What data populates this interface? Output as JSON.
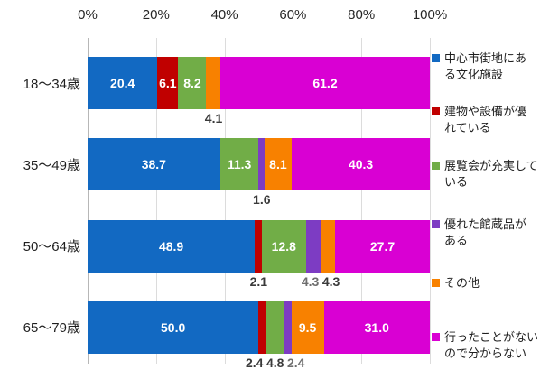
{
  "chart_data": {
    "type": "bar",
    "orientation": "horizontal",
    "stacked": true,
    "title": "",
    "xlabel": "",
    "ylabel": "",
    "xlim": [
      0,
      100
    ],
    "x_ticks": [
      "0%",
      "20%",
      "40%",
      "60%",
      "80%",
      "100%"
    ],
    "grid": true,
    "legend_position": "right",
    "categories": [
      "18〜34歳",
      "35〜49歳",
      "50〜64歳",
      "65〜79歳"
    ],
    "series": [
      {
        "name": "中心市街地にある文化施設",
        "color": "#1269c2",
        "values": [
          20.4,
          38.7,
          48.9,
          50.0
        ]
      },
      {
        "name": "建物や設備が優れている",
        "color": "#c00000",
        "values": [
          6.1,
          0,
          2.1,
          2.4
        ]
      },
      {
        "name": "展覧会が充実している",
        "color": "#71ad47",
        "values": [
          8.2,
          11.3,
          12.8,
          4.8
        ]
      },
      {
        "name": "優れた館蔵品がある",
        "color": "#7d3cc3",
        "values": [
          0,
          1.6,
          4.3,
          2.4
        ]
      },
      {
        "name": "その他",
        "color": "#f88100",
        "values": [
          4.1,
          8.1,
          4.3,
          9.5
        ]
      },
      {
        "name": "行ったことがないので分からない",
        "color": "#d900d3",
        "values": [
          61.2,
          40.3,
          27.7,
          31.0
        ]
      }
    ],
    "legend_items": [
      "中心市街地にあ\nる文化施設",
      "建物や設備が優\nれている",
      "展覧会が充実して\nいる",
      "優れた館蔵品が\nある",
      "その他",
      "行ったことがない\nので分からない"
    ],
    "label_decimals": 1,
    "gray_outside_labels_row_series": [
      [
        2,
        3
      ],
      [
        3,
        3
      ]
    ]
  },
  "colors": {
    "inside_label": "#ffffff",
    "outside_label": "#3a3a3a",
    "outside_label_gray": "#6e6e6e",
    "gridline": "#dcdcdc",
    "axisline": "#b7b7b7",
    "tick": "#a6a6a6",
    "text": "#262626"
  }
}
